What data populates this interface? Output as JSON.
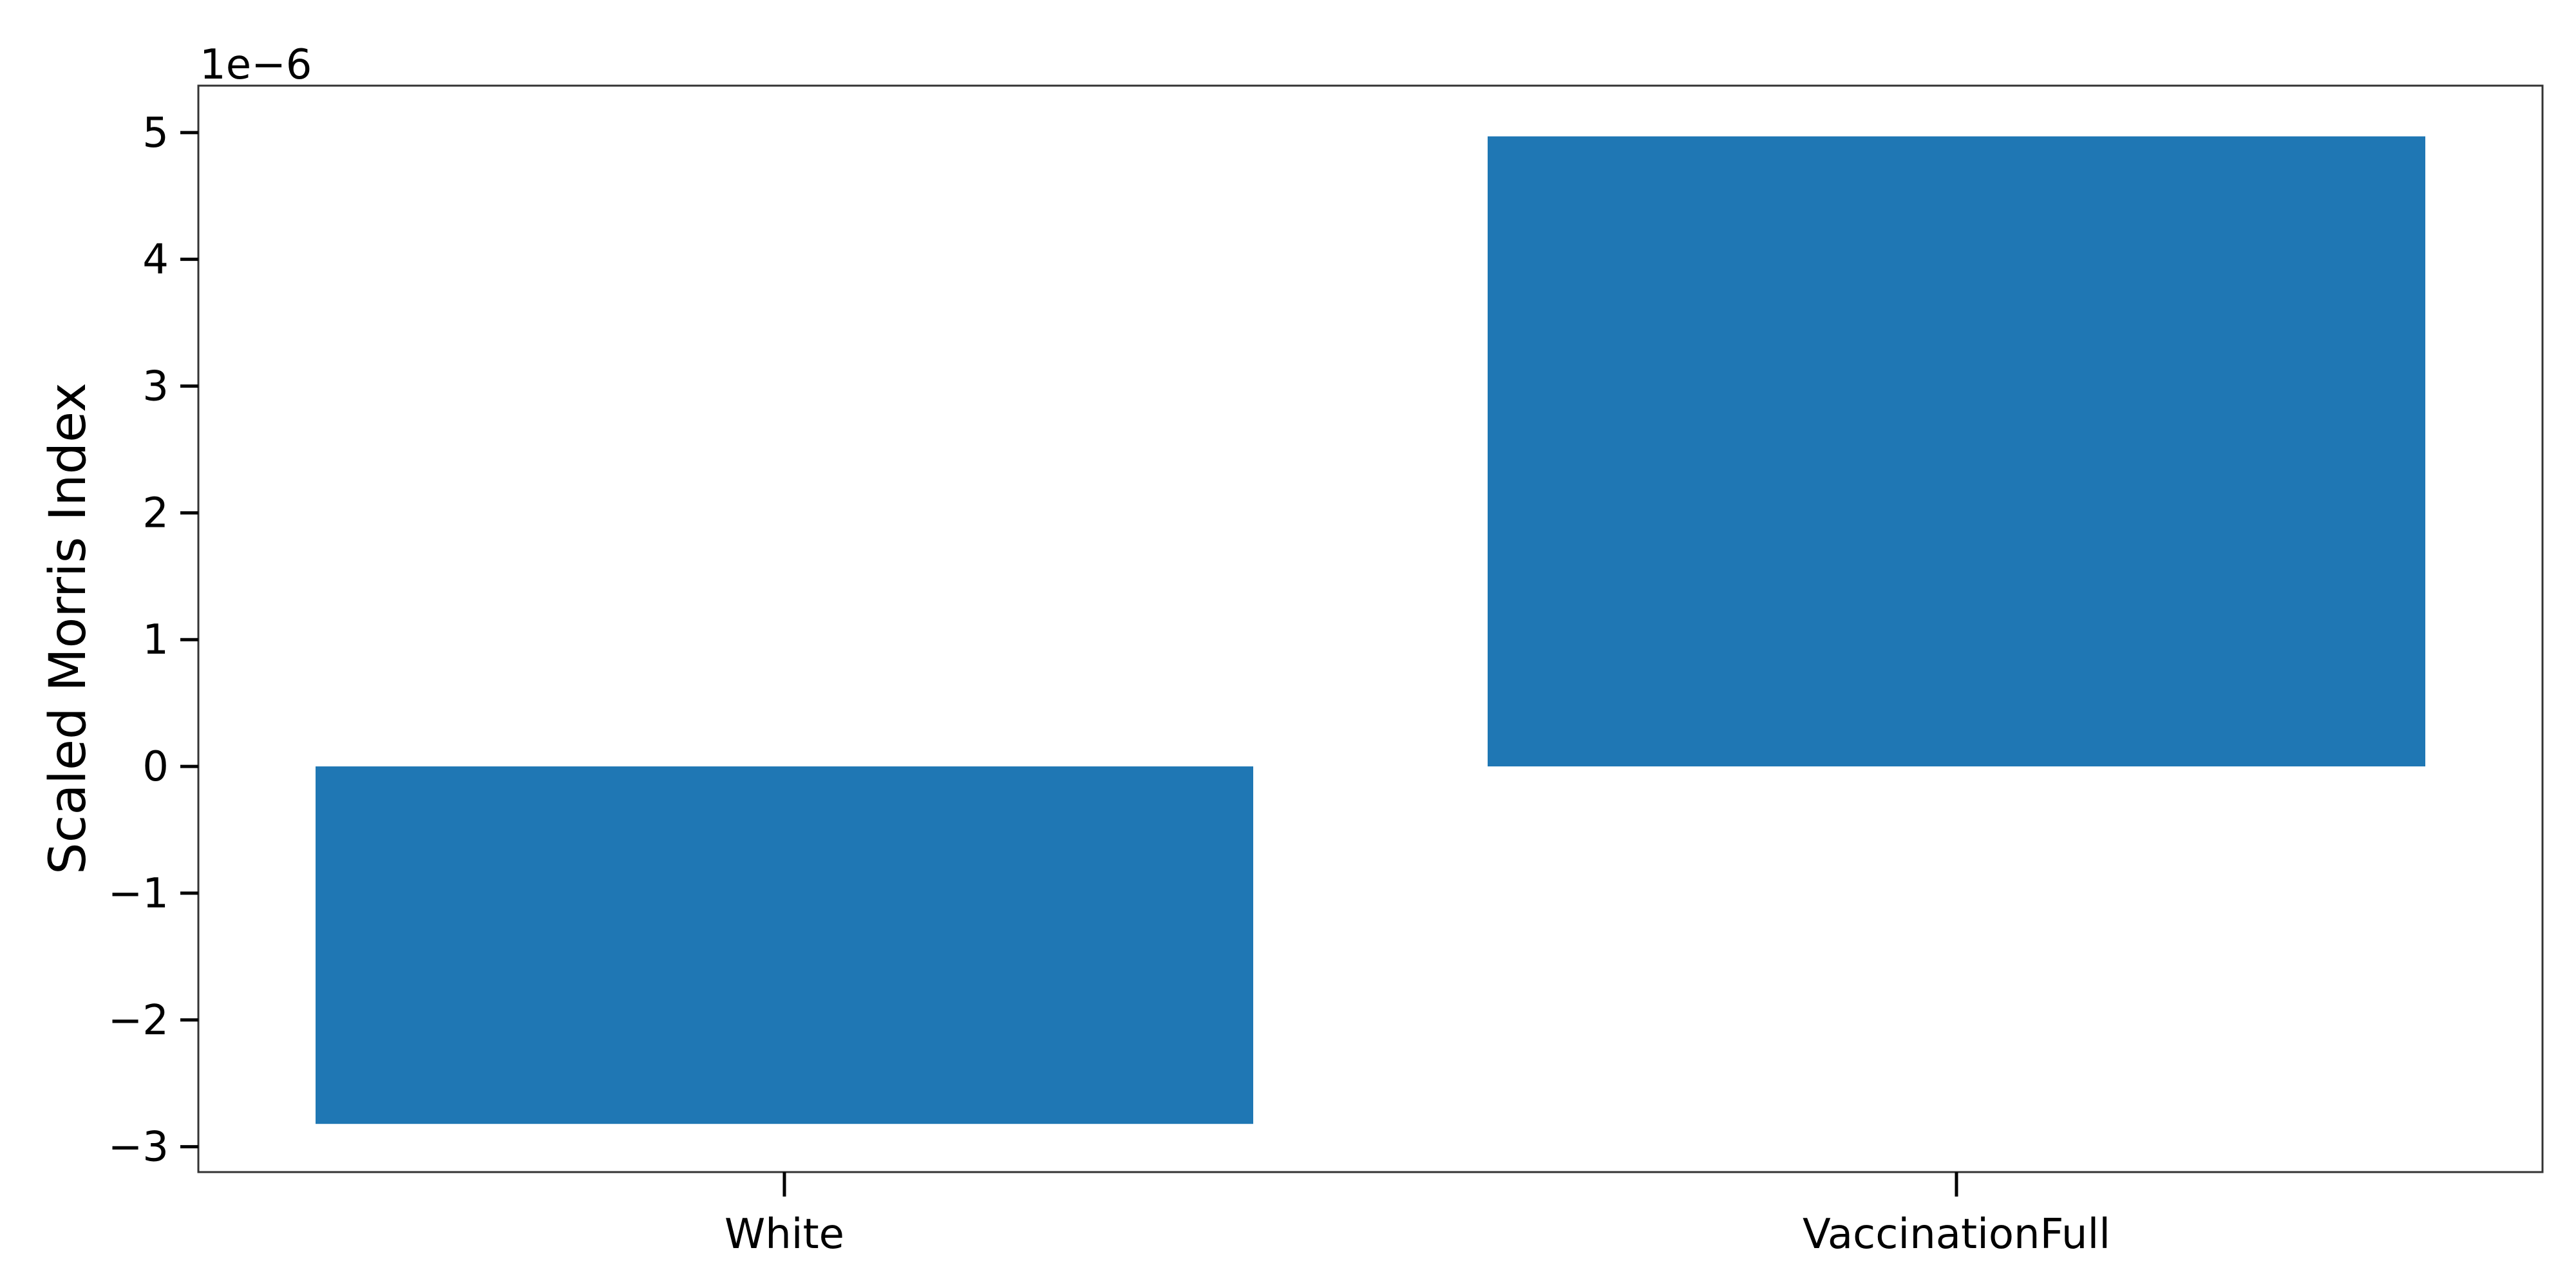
{
  "chart_data": {
    "type": "bar",
    "categories": [
      "White",
      "VaccinationFull"
    ],
    "values": [
      -2.82e-06,
      4.97e-06
    ],
    "xlabel": "",
    "ylabel": "Scaled Morris Index",
    "ylim": [
      -3.2e-06,
      5.37e-06
    ],
    "yticks": [
      -3,
      -2,
      -1,
      0,
      1,
      2,
      3,
      4,
      5
    ],
    "ytick_labels": [
      "−3",
      "−2",
      "−1",
      "0",
      "1",
      "2",
      "3",
      "4",
      "5"
    ],
    "y_offset_text": "1e−6",
    "bar_color": "#1f77b4",
    "grid": false,
    "legend": false
  }
}
